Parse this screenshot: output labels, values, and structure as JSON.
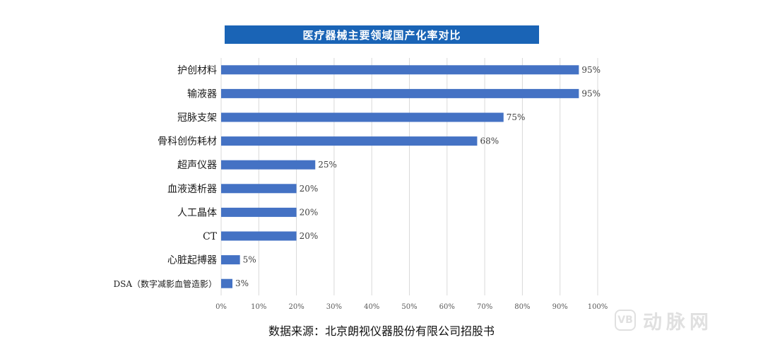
{
  "chart_data": {
    "type": "bar",
    "orientation": "horizontal",
    "title": "医疗器械主要领域国产化率对比",
    "categories": [
      "护创材料",
      "输液器",
      "冠脉支架",
      "骨科创伤耗材",
      "超声仪器",
      "血液透析器",
      "人工晶体",
      "CT",
      "心脏起搏器",
      "DSA（数字减影血管造影）"
    ],
    "values": [
      95,
      95,
      75,
      68,
      25,
      20,
      20,
      20,
      5,
      3
    ],
    "value_labels": [
      "95%",
      "95%",
      "75%",
      "68%",
      "25%",
      "20%",
      "20%",
      "20%",
      "5%",
      "3%"
    ],
    "x_ticks": [
      "0%",
      "10%",
      "20%",
      "30%",
      "40%",
      "50%",
      "60%",
      "70%",
      "80%",
      "90%",
      "100%"
    ],
    "xlim": [
      0,
      100
    ],
    "grid": true,
    "bar_color": "#4472c4",
    "title_bg_color": "#1a64b6"
  },
  "source_note": "数据来源：北京朗视仪器股份有限公司招股书",
  "watermark": {
    "logo_text": "VB",
    "text": "动脉网"
  }
}
